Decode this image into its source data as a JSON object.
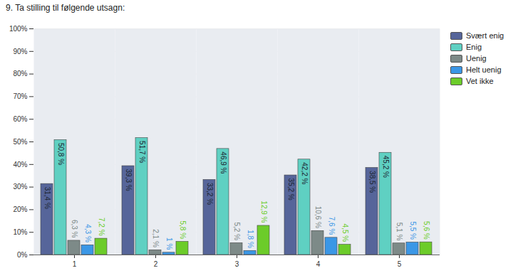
{
  "chart_data": {
    "type": "bar",
    "title": "9. Ta stilling til følgende utsagn:",
    "categories": [
      "1",
      "2",
      "3",
      "4",
      "5"
    ],
    "series": [
      {
        "name": "Svært enig",
        "color": "#56659a",
        "values": [
          31.4,
          39.3,
          33.2,
          35.2,
          38.5
        ],
        "value_labels": [
          "31,4 %",
          "39,3 %",
          "33,2 %",
          "35,2 %",
          "38,5 %"
        ]
      },
      {
        "name": "Enig",
        "color": "#5fd0c2",
        "values": [
          50.8,
          51.7,
          46.9,
          42.2,
          45.2
        ],
        "value_labels": [
          "50,8 %",
          "51,7 %",
          "46,9 %",
          "42,2 %",
          "45,2 %"
        ]
      },
      {
        "name": "Uenig",
        "color": "#7d8a88",
        "values": [
          6.3,
          2.1,
          5.2,
          10.6,
          5.1
        ],
        "value_labels": [
          "6,3 %",
          "2,1 %",
          "5,2 %",
          "10,6 %",
          "5,1 %"
        ]
      },
      {
        "name": "Helt uenig",
        "color": "#3b97e6",
        "values": [
          4.3,
          1.0,
          1.8,
          7.6,
          5.5
        ],
        "value_labels": [
          "4,3 %",
          "1 %",
          "1,8 %",
          "7,6 %",
          "5,5 %"
        ]
      },
      {
        "name": "Vet ikke",
        "color": "#6ccc2a",
        "values": [
          7.2,
          5.8,
          12.9,
          4.5,
          5.6
        ],
        "value_labels": [
          "7,2 %",
          "5,8 %",
          "12,9 %",
          "4,5 %",
          "5,6 %"
        ]
      }
    ],
    "ylim": [
      0,
      100
    ],
    "yticks": [
      {
        "value": 0,
        "label": "0%"
      },
      {
        "value": 10,
        "label": "10%"
      },
      {
        "value": 20,
        "label": "20%"
      },
      {
        "value": 30,
        "label": "30%"
      },
      {
        "value": 40,
        "label": "40%"
      },
      {
        "value": 50,
        "label": "50%"
      },
      {
        "value": 60,
        "label": "60%"
      },
      {
        "value": 70,
        "label": "70%"
      },
      {
        "value": 80,
        "label": "80%"
      },
      {
        "value": 90,
        "label": "90%"
      },
      {
        "value": 100,
        "label": "100%"
      }
    ],
    "grid": true,
    "legend": "right",
    "data_labels": true
  }
}
